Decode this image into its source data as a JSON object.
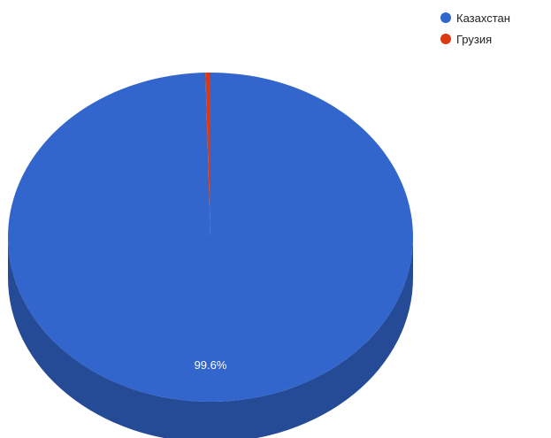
{
  "chart_data": {
    "type": "pie",
    "style": "3d",
    "categories": [
      "Казахстан",
      "Грузия"
    ],
    "values": [
      99.6,
      0.4
    ],
    "data_labels": [
      "99.6%",
      ""
    ],
    "colors": [
      "#3366cc",
      "#dc3912"
    ],
    "side_colors": [
      "#254b97",
      "#a32a0d"
    ],
    "legend_position": "top-right",
    "title": ""
  },
  "legend": {
    "items": [
      {
        "label": "Казахстан",
        "color": "#3366cc"
      },
      {
        "label": "Грузия",
        "color": "#dc3912"
      }
    ]
  }
}
